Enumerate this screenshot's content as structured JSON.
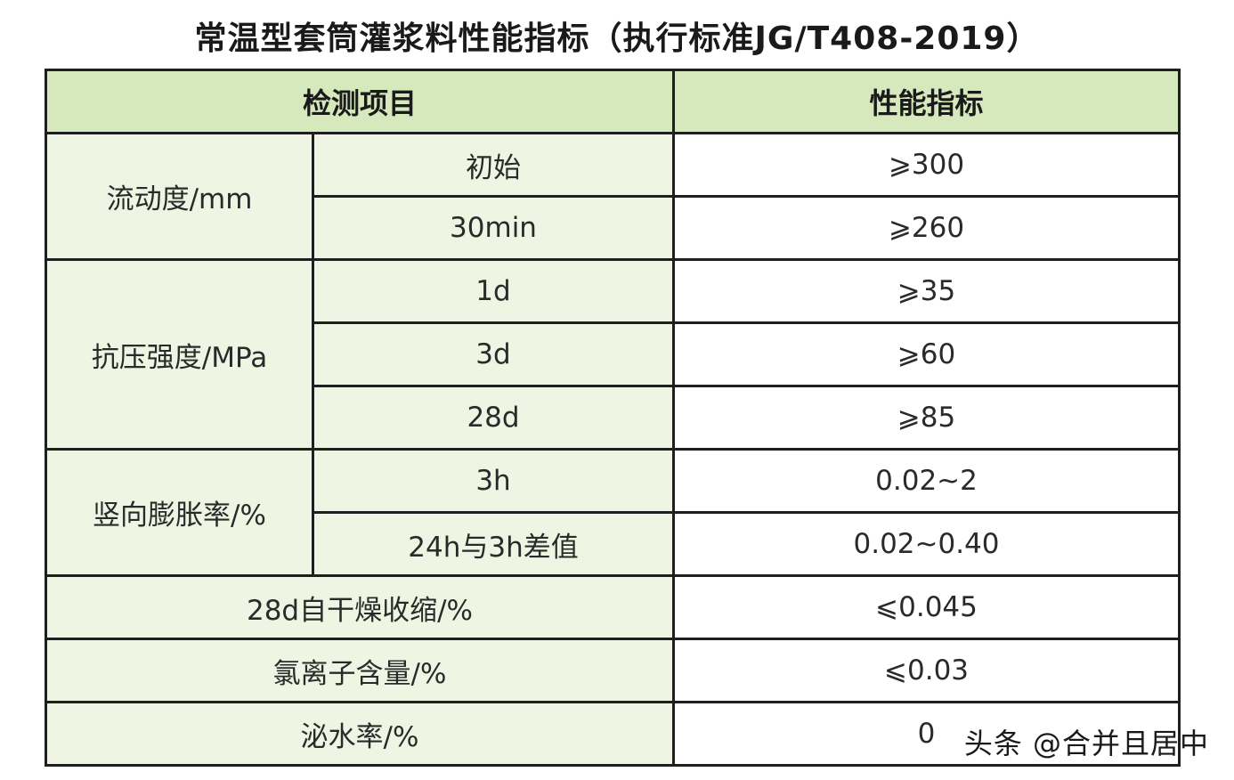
{
  "title": "常温型套筒灌浆料性能指标（执行标准JG/T408-2019）",
  "headers": {
    "item": "检测项目",
    "indicator": "性能指标"
  },
  "groups": [
    {
      "name": "流动度/mm",
      "rows": [
        {
          "sub": "初始",
          "value": "⩾300"
        },
        {
          "sub": "30min",
          "value": "⩾260"
        }
      ]
    },
    {
      "name": "抗压强度/MPa",
      "rows": [
        {
          "sub": "1d",
          "value": "⩾35"
        },
        {
          "sub": "3d",
          "value": "⩾60"
        },
        {
          "sub": "28d",
          "value": "⩾85"
        }
      ]
    },
    {
      "name": "竖向膨胀率/%",
      "rows": [
        {
          "sub": "3h",
          "value": "0.02~2"
        },
        {
          "sub": "24h与3h差值",
          "value": "0.02~0.40"
        }
      ]
    }
  ],
  "single_rows": [
    {
      "item": "28d自干燥收缩/%",
      "value": "⩽0.045"
    },
    {
      "item": "氯离子含量/%",
      "value": "⩽0.03"
    },
    {
      "item": "泌水率/%",
      "value": "0"
    }
  ],
  "watermark": "头条 @合并且居中"
}
